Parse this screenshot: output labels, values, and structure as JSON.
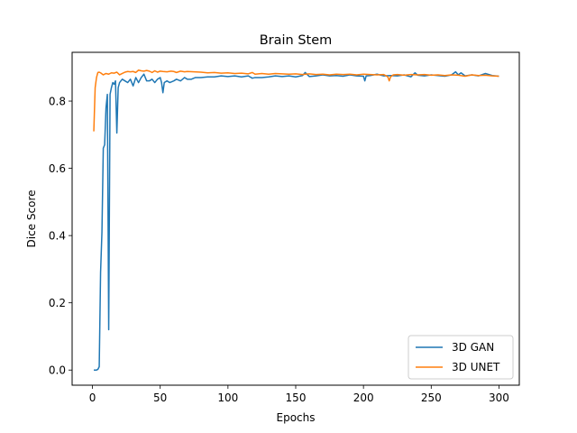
{
  "chart_data": {
    "type": "line",
    "title": "Brain Stem",
    "xlabel": "Epochs",
    "ylabel": "Dice Score",
    "xlim": [
      -15,
      315
    ],
    "ylim": [
      -0.045,
      0.945
    ],
    "xticks": [
      0,
      50,
      100,
      150,
      200,
      250,
      300
    ],
    "yticks": [
      0.0,
      0.2,
      0.4,
      0.6,
      0.8
    ],
    "ytick_labels": [
      "0.0",
      "0.2",
      "0.4",
      "0.6",
      "0.8"
    ],
    "legend_position": "lower-right",
    "grid": false,
    "series": [
      {
        "name": "3D GAN",
        "color": "#1f77b4",
        "points": [
          [
            1,
            0.0
          ],
          [
            2,
            0.0
          ],
          [
            3,
            0.0
          ],
          [
            4,
            0.002
          ],
          [
            5,
            0.01
          ],
          [
            6,
            0.29
          ],
          [
            7,
            0.41
          ],
          [
            8,
            0.66
          ],
          [
            9,
            0.67
          ],
          [
            10,
            0.78
          ],
          [
            11,
            0.82
          ],
          [
            12,
            0.12
          ],
          [
            13,
            0.82
          ],
          [
            14,
            0.84
          ],
          [
            15,
            0.855
          ],
          [
            16,
            0.85
          ],
          [
            17,
            0.86
          ],
          [
            18,
            0.705
          ],
          [
            19,
            0.84
          ],
          [
            20,
            0.855
          ],
          [
            21,
            0.86
          ],
          [
            22,
            0.865
          ],
          [
            24,
            0.86
          ],
          [
            26,
            0.855
          ],
          [
            28,
            0.865
          ],
          [
            30,
            0.845
          ],
          [
            32,
            0.87
          ],
          [
            34,
            0.855
          ],
          [
            36,
            0.87
          ],
          [
            38,
            0.88
          ],
          [
            40,
            0.86
          ],
          [
            42,
            0.86
          ],
          [
            44,
            0.865
          ],
          [
            46,
            0.855
          ],
          [
            48,
            0.865
          ],
          [
            50,
            0.87
          ],
          [
            51,
            0.855
          ],
          [
            52,
            0.825
          ],
          [
            53,
            0.855
          ],
          [
            55,
            0.86
          ],
          [
            57,
            0.855
          ],
          [
            60,
            0.86
          ],
          [
            62,
            0.865
          ],
          [
            65,
            0.86
          ],
          [
            68,
            0.87
          ],
          [
            70,
            0.865
          ],
          [
            73,
            0.865
          ],
          [
            76,
            0.87
          ],
          [
            80,
            0.87
          ],
          [
            85,
            0.872
          ],
          [
            90,
            0.872
          ],
          [
            95,
            0.875
          ],
          [
            100,
            0.873
          ],
          [
            105,
            0.875
          ],
          [
            110,
            0.872
          ],
          [
            115,
            0.875
          ],
          [
            118,
            0.868
          ],
          [
            120,
            0.87
          ],
          [
            125,
            0.87
          ],
          [
            130,
            0.872
          ],
          [
            135,
            0.875
          ],
          [
            140,
            0.873
          ],
          [
            145,
            0.875
          ],
          [
            150,
            0.872
          ],
          [
            155,
            0.876
          ],
          [
            157,
            0.885
          ],
          [
            160,
            0.873
          ],
          [
            165,
            0.875
          ],
          [
            170,
            0.878
          ],
          [
            175,
            0.875
          ],
          [
            180,
            0.876
          ],
          [
            185,
            0.874
          ],
          [
            190,
            0.878
          ],
          [
            195,
            0.875
          ],
          [
            200,
            0.874
          ],
          [
            201,
            0.86
          ],
          [
            202,
            0.875
          ],
          [
            205,
            0.876
          ],
          [
            210,
            0.88
          ],
          [
            215,
            0.875
          ],
          [
            220,
            0.876
          ],
          [
            225,
            0.875
          ],
          [
            230,
            0.878
          ],
          [
            235,
            0.872
          ],
          [
            238,
            0.884
          ],
          [
            240,
            0.877
          ],
          [
            245,
            0.875
          ],
          [
            250,
            0.878
          ],
          [
            255,
            0.876
          ],
          [
            260,
            0.874
          ],
          [
            265,
            0.878
          ],
          [
            268,
            0.887
          ],
          [
            270,
            0.878
          ],
          [
            272,
            0.884
          ],
          [
            275,
            0.875
          ],
          [
            280,
            0.878
          ],
          [
            285,
            0.875
          ],
          [
            290,
            0.882
          ],
          [
            295,
            0.876
          ],
          [
            300,
            0.874
          ]
        ]
      },
      {
        "name": "3D UNET",
        "color": "#ff7f0e",
        "points": [
          [
            1,
            0.71
          ],
          [
            2,
            0.84
          ],
          [
            3,
            0.87
          ],
          [
            4,
            0.885
          ],
          [
            5,
            0.886
          ],
          [
            6,
            0.884
          ],
          [
            8,
            0.878
          ],
          [
            10,
            0.882
          ],
          [
            12,
            0.88
          ],
          [
            14,
            0.884
          ],
          [
            16,
            0.883
          ],
          [
            18,
            0.886
          ],
          [
            20,
            0.878
          ],
          [
            22,
            0.882
          ],
          [
            24,
            0.886
          ],
          [
            26,
            0.888
          ],
          [
            28,
            0.887
          ],
          [
            30,
            0.888
          ],
          [
            32,
            0.885
          ],
          [
            34,
            0.892
          ],
          [
            36,
            0.89
          ],
          [
            38,
            0.889
          ],
          [
            40,
            0.891
          ],
          [
            42,
            0.889
          ],
          [
            44,
            0.885
          ],
          [
            46,
            0.89
          ],
          [
            48,
            0.886
          ],
          [
            50,
            0.889
          ],
          [
            52,
            0.888
          ],
          [
            55,
            0.887
          ],
          [
            58,
            0.889
          ],
          [
            60,
            0.888
          ],
          [
            62,
            0.885
          ],
          [
            65,
            0.889
          ],
          [
            68,
            0.887
          ],
          [
            70,
            0.888
          ],
          [
            75,
            0.887
          ],
          [
            80,
            0.886
          ],
          [
            85,
            0.884
          ],
          [
            90,
            0.885
          ],
          [
            95,
            0.883
          ],
          [
            100,
            0.884
          ],
          [
            105,
            0.882
          ],
          [
            110,
            0.883
          ],
          [
            115,
            0.881
          ],
          [
            118,
            0.885
          ],
          [
            120,
            0.88
          ],
          [
            125,
            0.882
          ],
          [
            130,
            0.88
          ],
          [
            135,
            0.882
          ],
          [
            140,
            0.881
          ],
          [
            145,
            0.88
          ],
          [
            150,
            0.881
          ],
          [
            155,
            0.879
          ],
          [
            160,
            0.881
          ],
          [
            165,
            0.879
          ],
          [
            170,
            0.88
          ],
          [
            175,
            0.878
          ],
          [
            180,
            0.88
          ],
          [
            185,
            0.879
          ],
          [
            190,
            0.88
          ],
          [
            195,
            0.878
          ],
          [
            200,
            0.88
          ],
          [
            205,
            0.879
          ],
          [
            210,
            0.878
          ],
          [
            215,
            0.879
          ],
          [
            218,
            0.872
          ],
          [
            219,
            0.86
          ],
          [
            220,
            0.872
          ],
          [
            222,
            0.878
          ],
          [
            225,
            0.879
          ],
          [
            230,
            0.877
          ],
          [
            235,
            0.879
          ],
          [
            240,
            0.878
          ],
          [
            245,
            0.879
          ],
          [
            250,
            0.877
          ],
          [
            255,
            0.878
          ],
          [
            260,
            0.876
          ],
          [
            265,
            0.878
          ],
          [
            270,
            0.877
          ],
          [
            275,
            0.874
          ],
          [
            280,
            0.878
          ],
          [
            285,
            0.876
          ],
          [
            290,
            0.877
          ],
          [
            295,
            0.875
          ],
          [
            300,
            0.874
          ]
        ]
      }
    ]
  }
}
